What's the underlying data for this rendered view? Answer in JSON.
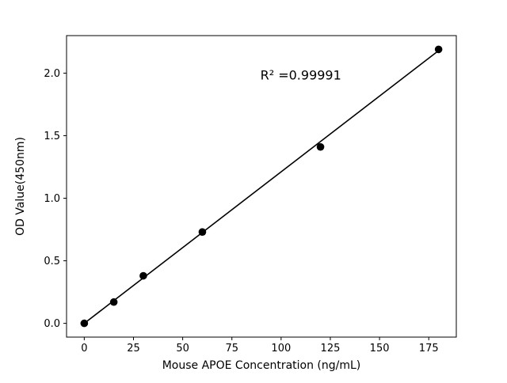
{
  "chart_data": {
    "type": "scatter",
    "title": "",
    "xlabel": "Mouse APOE Concentration (ng/mL)",
    "ylabel": "OD Value(450nm)",
    "x": [
      0,
      15,
      30,
      60,
      120,
      180
    ],
    "y": [
      0.0,
      0.17,
      0.38,
      0.73,
      1.41,
      2.19
    ],
    "fit_line": {
      "x": [
        0,
        180
      ],
      "y": [
        0.0,
        2.18
      ]
    },
    "annotation": {
      "text": "R² =0.99991",
      "x": 110,
      "y": 1.95
    },
    "xlim": [
      -9,
      189
    ],
    "ylim": [
      -0.11,
      2.3
    ],
    "xticks": [
      0,
      25,
      50,
      75,
      100,
      125,
      150,
      175
    ],
    "yticks": [
      0.0,
      0.5,
      1.0,
      1.5,
      2.0
    ],
    "grid": false,
    "legend": "none",
    "marker_color": "#000000",
    "line_color": "#000000",
    "background_color": "#ffffff"
  }
}
